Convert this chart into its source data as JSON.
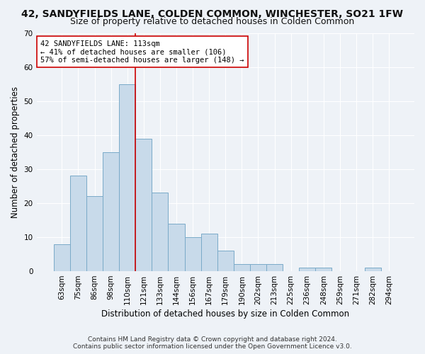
{
  "title": "42, SANDYFIELDS LANE, COLDEN COMMON, WINCHESTER, SO21 1FW",
  "subtitle": "Size of property relative to detached houses in Colden Common",
  "xlabel": "Distribution of detached houses by size in Colden Common",
  "ylabel": "Number of detached properties",
  "categories": [
    "63sqm",
    "75sqm",
    "86sqm",
    "98sqm",
    "110sqm",
    "121sqm",
    "133sqm",
    "144sqm",
    "156sqm",
    "167sqm",
    "179sqm",
    "190sqm",
    "202sqm",
    "213sqm",
    "225sqm",
    "236sqm",
    "248sqm",
    "259sqm",
    "271sqm",
    "282sqm",
    "294sqm"
  ],
  "values": [
    8,
    28,
    22,
    35,
    55,
    39,
    23,
    14,
    10,
    11,
    6,
    2,
    2,
    2,
    0,
    1,
    1,
    0,
    0,
    1,
    0
  ],
  "bar_color": "#c8daea",
  "bar_edge_color": "#7aaac8",
  "background_color": "#eef2f7",
  "grid_color": "#ffffff",
  "vline_x_idx": 4.5,
  "vline_color": "#cc0000",
  "annotation_title": "42 SANDYFIELDS LANE: 113sqm",
  "annotation_line1": "← 41% of detached houses are smaller (106)",
  "annotation_line2": "57% of semi-detached houses are larger (148) →",
  "annotation_box_color": "#ffffff",
  "annotation_border_color": "#cc0000",
  "ylim": [
    0,
    70
  ],
  "yticks": [
    0,
    10,
    20,
    30,
    40,
    50,
    60,
    70
  ],
  "footer1": "Contains HM Land Registry data © Crown copyright and database right 2024.",
  "footer2": "Contains public sector information licensed under the Open Government Licence v3.0.",
  "title_fontsize": 10,
  "subtitle_fontsize": 9,
  "tick_fontsize": 7.5,
  "ylabel_fontsize": 8.5,
  "xlabel_fontsize": 8.5,
  "annotation_fontsize": 7.5,
  "footer_fontsize": 6.5
}
